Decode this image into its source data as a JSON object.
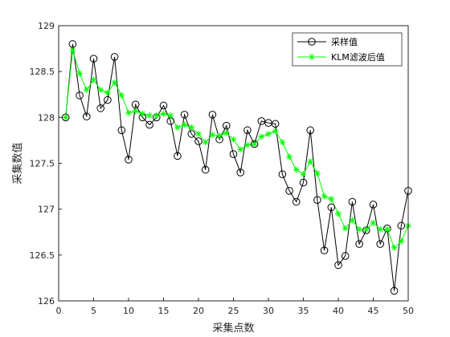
{
  "chart_data": {
    "type": "line",
    "xlabel": "采集点数",
    "ylabel": "采集数值",
    "xlim": [
      0,
      50
    ],
    "ylim": [
      126,
      129
    ],
    "xticks": [
      "0",
      "5",
      "10",
      "15",
      "20",
      "25",
      "30",
      "35",
      "40",
      "45",
      "50"
    ],
    "yticks": [
      "126",
      "126.5",
      "127",
      "127.5",
      "128",
      "128.5",
      "129"
    ],
    "grid": false,
    "legend_position": "top-right",
    "colors": {
      "raw": "#000000",
      "filtered": "#00ff00",
      "axis": "#262626"
    },
    "x": [
      1,
      2,
      3,
      4,
      5,
      6,
      7,
      8,
      9,
      10,
      11,
      12,
      13,
      14,
      15,
      16,
      17,
      18,
      19,
      20,
      21,
      22,
      23,
      24,
      25,
      26,
      27,
      28,
      29,
      30,
      31,
      32,
      33,
      34,
      35,
      36,
      37,
      38,
      39,
      40,
      41,
      42,
      43,
      44,
      45,
      46,
      47,
      48,
      49,
      50
    ],
    "series": [
      {
        "name": "采样值",
        "marker": "circle",
        "values": [
          128.0,
          128.8,
          128.24,
          128.01,
          128.64,
          128.1,
          128.19,
          128.66,
          127.86,
          127.54,
          128.14,
          128.0,
          127.92,
          128.0,
          128.13,
          127.96,
          127.58,
          128.03,
          127.82,
          127.74,
          127.43,
          128.03,
          127.76,
          127.91,
          127.6,
          127.4,
          127.86,
          127.71,
          127.96,
          127.94,
          127.93,
          127.38,
          127.2,
          127.08,
          127.29,
          127.86,
          127.1,
          126.55,
          127.02,
          126.39,
          126.49,
          127.08,
          126.62,
          126.77,
          127.05,
          126.62,
          126.79,
          126.11,
          126.82,
          127.2
        ]
      },
      {
        "name": "KLM滤波后值",
        "marker": "star",
        "values": [
          128.0,
          128.73,
          128.48,
          128.3,
          128.41,
          128.3,
          128.27,
          128.38,
          128.24,
          128.05,
          128.07,
          128.04,
          128.02,
          128.02,
          128.04,
          128.02,
          127.89,
          127.92,
          127.89,
          127.82,
          127.73,
          127.81,
          127.8,
          127.83,
          127.76,
          127.65,
          127.7,
          127.71,
          127.79,
          127.82,
          127.85,
          127.73,
          127.57,
          127.43,
          127.38,
          127.52,
          127.39,
          127.14,
          127.11,
          126.95,
          126.79,
          126.88,
          126.78,
          126.78,
          126.85,
          126.78,
          126.78,
          126.58,
          126.65,
          126.82
        ]
      }
    ]
  }
}
